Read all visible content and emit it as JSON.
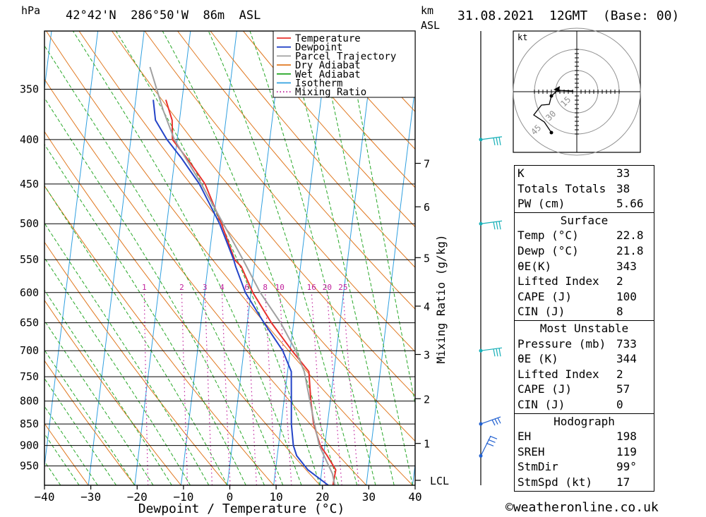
{
  "header": {
    "pressure_unit": "hPa",
    "location": "42°42'N  286°50'W  86m  ASL",
    "km": "km",
    "asl": "ASL",
    "datetime": "31.08.2021  12GMT  (Base: 00)"
  },
  "chart_data": {
    "type": "line",
    "subtype": "skew-T log-P diagram",
    "xlabel": "Dewpoint / Temperature (°C)",
    "ylabel_left": "hPa",
    "mixing_ratio_axis_label": "Mixing Ratio (g/kg)",
    "x_ticks": [
      -40,
      -30,
      -20,
      -10,
      0,
      10,
      20,
      30,
      40
    ],
    "x_tick_labels": [
      "−40",
      "−30",
      "−20",
      "−10",
      "0",
      "10",
      "20",
      "30",
      "40"
    ],
    "pressure_levels": [
      350,
      400,
      450,
      500,
      550,
      600,
      650,
      700,
      750,
      800,
      850,
      900,
      950
    ],
    "ylim_hpa": [
      1000,
      300
    ],
    "km_ticks": [
      {
        "label": "7",
        "p": 426
      },
      {
        "label": "6",
        "p": 478
      },
      {
        "label": "5",
        "p": 547
      },
      {
        "label": "4",
        "p": 622
      },
      {
        "label": "3",
        "p": 707
      },
      {
        "label": "2",
        "p": 795
      },
      {
        "label": "1",
        "p": 895
      },
      {
        "label": "LCL",
        "p": 987
      }
    ],
    "mixing_ratio_labels": [
      "1",
      "2",
      "3",
      "4",
      "6",
      "8",
      "10",
      "16",
      "20",
      "25"
    ],
    "legend": [
      {
        "name": "Temperature",
        "color": "#e8322d",
        "style": "solid"
      },
      {
        "name": "Dewpoint",
        "color": "#2444c8",
        "style": "solid"
      },
      {
        "name": "Parcel Trajectory",
        "color": "#a0a0a0",
        "style": "solid"
      },
      {
        "name": "Dry Adiabat",
        "color": "#e07820",
        "style": "solid"
      },
      {
        "name": "Wet Adiabat",
        "color": "#28a828",
        "style": "solid"
      },
      {
        "name": "Isotherm",
        "color": "#30a0e0",
        "style": "solid"
      },
      {
        "name": "Mixing Ratio",
        "color": "#c0209c",
        "style": "dotted"
      }
    ],
    "series": [
      {
        "name": "Temperature",
        "color": "#e8322d",
        "points": [
          {
            "p": 1000,
            "t": 22.8
          },
          {
            "p": 960,
            "t": 23.0
          },
          {
            "p": 925,
            "t": 20.8
          },
          {
            "p": 900,
            "t": 19.0
          },
          {
            "p": 850,
            "t": 17.0
          },
          {
            "p": 800,
            "t": 15.8
          },
          {
            "p": 740,
            "t": 14.6
          },
          {
            "p": 700,
            "t": 10.4
          },
          {
            "p": 650,
            "t": 5.2
          },
          {
            "p": 600,
            "t": 0.4
          },
          {
            "p": 560,
            "t": -2.8
          },
          {
            "p": 550,
            "t": -4.4
          },
          {
            "p": 500,
            "t": -8.2
          },
          {
            "p": 450,
            "t": -12.8
          },
          {
            "p": 425,
            "t": -16.6
          },
          {
            "p": 400,
            "t": -21.0
          },
          {
            "p": 380,
            "t": -21.6
          },
          {
            "p": 360,
            "t": -23.5
          }
        ]
      },
      {
        "name": "Dewpoint",
        "color": "#2444c8",
        "points": [
          {
            "p": 1000,
            "t": 21.8
          },
          {
            "p": 960,
            "t": 17.0
          },
          {
            "p": 925,
            "t": 14.2
          },
          {
            "p": 900,
            "t": 13.2
          },
          {
            "p": 850,
            "t": 12.2
          },
          {
            "p": 800,
            "t": 11.6
          },
          {
            "p": 740,
            "t": 10.8
          },
          {
            "p": 700,
            "t": 8.4
          },
          {
            "p": 650,
            "t": 3.6
          },
          {
            "p": 600,
            "t": -1.2
          },
          {
            "p": 560,
            "t": -4.0
          },
          {
            "p": 550,
            "t": -4.6
          },
          {
            "p": 500,
            "t": -8.6
          },
          {
            "p": 450,
            "t": -14.0
          },
          {
            "p": 420,
            "t": -18.6
          },
          {
            "p": 400,
            "t": -22.2
          },
          {
            "p": 380,
            "t": -25.2
          },
          {
            "p": 360,
            "t": -26.2
          }
        ]
      },
      {
        "name": "Parcel Trajectory",
        "color": "#a0a0a0",
        "points": [
          {
            "p": 1000,
            "t": 23.2
          },
          {
            "p": 970,
            "t": 22.4
          },
          {
            "p": 900,
            "t": 18.8
          },
          {
            "p": 850,
            "t": 17.2
          },
          {
            "p": 800,
            "t": 15.6
          },
          {
            "p": 740,
            "t": 13.6
          },
          {
            "p": 700,
            "t": 11.2
          },
          {
            "p": 650,
            "t": 7.2
          },
          {
            "p": 600,
            "t": 2.0
          },
          {
            "p": 550,
            "t": -2.6
          },
          {
            "p": 500,
            "t": -7.8
          },
          {
            "p": 450,
            "t": -13.6
          },
          {
            "p": 400,
            "t": -20.6
          },
          {
            "p": 370,
            "t": -23.8
          },
          {
            "p": 330,
            "t": -27.8
          }
        ]
      }
    ]
  },
  "hodograph": {
    "unit": "kt",
    "ring_labels": [
      "15",
      "30",
      "45"
    ]
  },
  "wind_barbs_color": "#18b0b8",
  "stats": {
    "top": [
      {
        "label": "K",
        "value": "33"
      },
      {
        "label": "Totals Totals",
        "value": "38"
      },
      {
        "label": "PW (cm)",
        "value": "5.66"
      }
    ],
    "surface": {
      "title": "Surface",
      "rows": [
        {
          "label": "Temp (°C)",
          "value": "22.8"
        },
        {
          "label": "Dewp (°C)",
          "value": "21.8"
        },
        {
          "label": "θE(K)",
          "value": "343"
        },
        {
          "label": "Lifted Index",
          "value": "2"
        },
        {
          "label": "CAPE (J)",
          "value": "100"
        },
        {
          "label": "CIN (J)",
          "value": "8"
        }
      ]
    },
    "most_unstable": {
      "title": "Most Unstable",
      "rows": [
        {
          "label": "Pressure (mb)",
          "value": "733"
        },
        {
          "label": "θE (K)",
          "value": "344"
        },
        {
          "label": "Lifted Index",
          "value": "2"
        },
        {
          "label": "CAPE (J)",
          "value": "57"
        },
        {
          "label": "CIN (J)",
          "value": "0"
        }
      ]
    },
    "hodograph": {
      "title": "Hodograph",
      "rows": [
        {
          "label": "EH",
          "value": "198"
        },
        {
          "label": "SREH",
          "value": "119"
        },
        {
          "label": "StmDir",
          "value": "99°"
        },
        {
          "label": "StmSpd (kt)",
          "value": "17"
        }
      ]
    }
  },
  "footer": {
    "copyright": "©weatheronline.co.uk"
  }
}
